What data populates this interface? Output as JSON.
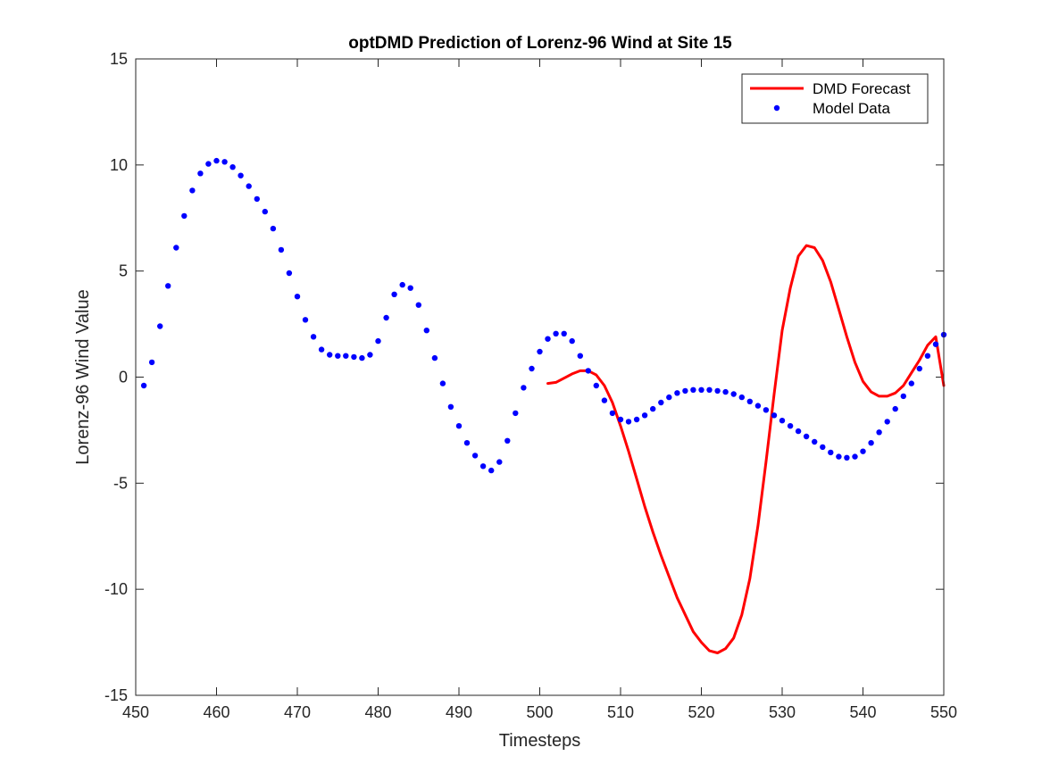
{
  "chart_data": {
    "type": "line",
    "title": "optDMD Prediction of Lorenz-96 Wind at Site 15",
    "xlabel": "Timesteps",
    "ylabel": "Lorenz-96 Wind Value",
    "xlim": [
      450,
      550
    ],
    "ylim": [
      -15,
      15
    ],
    "xticks": [
      "450",
      "460",
      "470",
      "480",
      "490",
      "500",
      "510",
      "520",
      "530",
      "540",
      "550"
    ],
    "yticks": [
      "-15",
      "-10",
      "-5",
      "0",
      "5",
      "10",
      "15"
    ],
    "grid": false,
    "legend_position": "top-right",
    "series": [
      {
        "name": "DMD Forecast",
        "style": "line",
        "color": "#ff0000",
        "x": [
          501,
          502,
          503,
          504,
          505,
          506,
          507,
          508,
          509,
          510,
          511,
          512,
          513,
          514,
          515,
          516,
          517,
          518,
          519,
          520,
          521,
          522,
          523,
          524,
          525,
          526,
          527,
          528,
          529,
          530,
          531,
          532,
          533,
          534,
          535,
          536,
          537,
          538,
          539,
          540,
          541,
          542,
          543,
          544,
          545,
          546,
          547,
          548,
          549,
          550
        ],
        "y": [
          -0.3,
          -0.25,
          -0.05,
          0.15,
          0.3,
          0.3,
          0.1,
          -0.4,
          -1.2,
          -2.3,
          -3.5,
          -4.8,
          -6.1,
          -7.3,
          -8.4,
          -9.4,
          -10.4,
          -11.2,
          -12.0,
          -12.5,
          -12.9,
          -13.0,
          -12.8,
          -12.3,
          -11.2,
          -9.5,
          -7.0,
          -4.0,
          -0.8,
          2.2,
          4.2,
          5.7,
          6.2,
          6.1,
          5.5,
          4.5,
          3.2,
          1.9,
          0.7,
          -0.2,
          -0.7,
          -0.9,
          -0.9,
          -0.75,
          -0.4,
          0.2,
          0.8,
          1.5,
          1.9,
          -0.4
        ]
      },
      {
        "name": "Model Data",
        "style": "dots",
        "color": "#0000ff",
        "x": [
          451,
          452,
          453,
          454,
          455,
          456,
          457,
          458,
          459,
          460,
          461,
          462,
          463,
          464,
          465,
          466,
          467,
          468,
          469,
          470,
          471,
          472,
          473,
          474,
          475,
          476,
          477,
          478,
          479,
          480,
          481,
          482,
          483,
          484,
          485,
          486,
          487,
          488,
          489,
          490,
          491,
          492,
          493,
          494,
          495,
          496,
          497,
          498,
          499,
          500,
          501,
          502,
          503,
          504,
          505,
          506,
          507,
          508,
          509,
          510,
          511,
          512,
          513,
          514,
          515,
          516,
          517,
          518,
          519,
          520,
          521,
          522,
          523,
          524,
          525,
          526,
          527,
          528,
          529,
          530,
          531,
          532,
          533,
          534,
          535,
          536,
          537,
          538,
          539,
          540,
          541,
          542,
          543,
          544,
          545,
          546,
          547,
          548,
          549,
          550
        ],
        "y": [
          -0.4,
          0.7,
          2.4,
          4.3,
          6.1,
          7.6,
          8.8,
          9.6,
          10.05,
          10.2,
          10.15,
          9.9,
          9.5,
          9.0,
          8.4,
          7.8,
          7.0,
          6.0,
          4.9,
          3.8,
          2.7,
          1.9,
          1.3,
          1.05,
          1.0,
          1.0,
          0.95,
          0.9,
          1.05,
          1.7,
          2.8,
          3.9,
          4.35,
          4.2,
          3.4,
          2.2,
          0.9,
          -0.3,
          -1.4,
          -2.3,
          -3.1,
          -3.7,
          -4.2,
          -4.4,
          -4.0,
          -3.0,
          -1.7,
          -0.5,
          0.4,
          1.2,
          1.8,
          2.05,
          2.05,
          1.7,
          1.0,
          0.3,
          -0.4,
          -1.1,
          -1.7,
          -2.0,
          -2.1,
          -2.0,
          -1.8,
          -1.5,
          -1.2,
          -0.95,
          -0.75,
          -0.65,
          -0.6,
          -0.6,
          -0.6,
          -0.65,
          -0.7,
          -0.8,
          -0.95,
          -1.15,
          -1.35,
          -1.55,
          -1.8,
          -2.05,
          -2.3,
          -2.55,
          -2.8,
          -3.05,
          -3.3,
          -3.55,
          -3.75,
          -3.8,
          -3.75,
          -3.5,
          -3.1,
          -2.6,
          -2.1,
          -1.5,
          -0.9,
          -0.3,
          0.4,
          1.0,
          1.55,
          2.0
        ]
      }
    ]
  }
}
